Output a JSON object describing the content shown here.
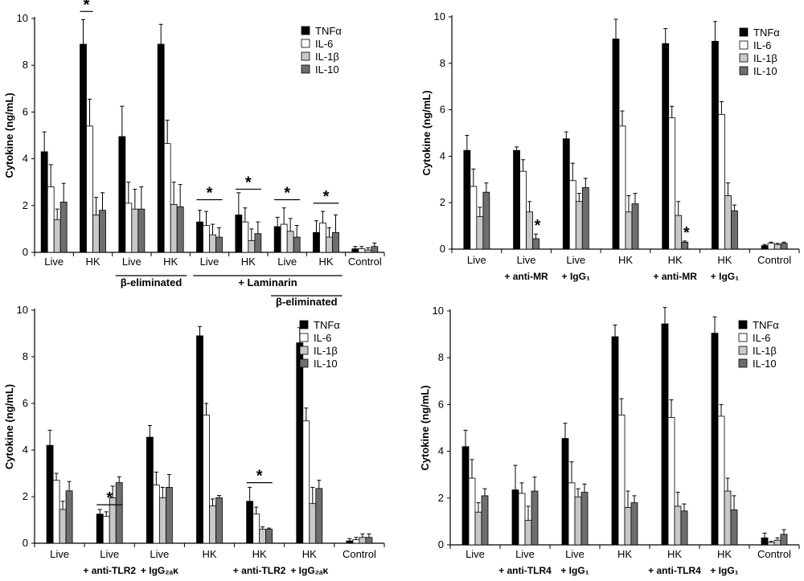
{
  "chart_data": [
    {
      "type": "bar",
      "panel": "A",
      "ylabel": "Cytokine (ng/mL)",
      "ylim": [
        0,
        10
      ],
      "yticks": [
        0,
        2,
        4,
        6,
        8,
        10
      ],
      "categories": [
        "Live",
        "HK",
        "Live",
        "HK",
        "Live",
        "HK",
        "Live",
        "HK",
        "Control"
      ],
      "sublabels": [],
      "group_labels": [
        {
          "text": "β-eliminated",
          "from": 2,
          "to": 3,
          "row": 1
        },
        {
          "text": "+ Laminarin",
          "from": 4,
          "to": 7,
          "row": 1
        },
        {
          "text": "β-eliminated",
          "from": 6,
          "to": 7,
          "row": 2
        }
      ],
      "series": [
        {
          "name": "TNFα",
          "color": "#000000",
          "values": [
            4.3,
            8.9,
            4.95,
            8.9,
            1.3,
            1.6,
            1.1,
            0.85,
            0.15
          ],
          "errors": [
            0.85,
            1.05,
            1.3,
            0.85,
            0.5,
            0.95,
            0.4,
            0.5,
            0.1
          ]
        },
        {
          "name": "IL-6",
          "color": "#ffffff",
          "values": [
            2.8,
            5.4,
            2.1,
            4.65,
            1.15,
            1.3,
            1.2,
            1.25,
            0.15
          ],
          "errors": [
            0.95,
            1.15,
            0.9,
            1.0,
            0.6,
            0.6,
            0.7,
            0.5,
            0.1
          ]
        },
        {
          "name": "IL-1β",
          "color": "#c8c8c8",
          "values": [
            1.4,
            1.6,
            1.85,
            2.05,
            0.75,
            0.5,
            0.9,
            0.65,
            0.1
          ],
          "errors": [
            0.45,
            0.75,
            0.85,
            0.95,
            0.45,
            0.5,
            0.55,
            0.4,
            0.1
          ]
        },
        {
          "name": "IL-10",
          "color": "#6e6e6e",
          "values": [
            2.15,
            1.8,
            1.85,
            1.95,
            0.65,
            0.8,
            0.65,
            0.85,
            0.25
          ],
          "errors": [
            0.8,
            0.75,
            0.95,
            0.95,
            0.4,
            0.5,
            0.5,
            0.75,
            0.15
          ]
        }
      ],
      "annotations": [
        {
          "text": "*",
          "category": 1,
          "from_series": 0,
          "to_series": 1,
          "at": 10.3
        },
        {
          "text": "*",
          "category": 4,
          "from_series": 0,
          "to_series": 3,
          "at": 2.25
        },
        {
          "text": "*",
          "category": 5,
          "from_series": 0,
          "to_series": 3,
          "at": 2.7
        },
        {
          "text": "*",
          "category": 6,
          "from_series": 0,
          "to_series": 3,
          "at": 2.25
        },
        {
          "text": "*",
          "category": 7,
          "from_series": 0,
          "to_series": 3,
          "at": 2.1
        }
      ]
    },
    {
      "type": "bar",
      "panel": "B",
      "ylabel": "Cytokine (ng/mL)",
      "ylim": [
        0,
        10
      ],
      "yticks": [
        0,
        2,
        4,
        6,
        8,
        10
      ],
      "categories": [
        "Live",
        "Live",
        "Live",
        "HK",
        "HK",
        "HK",
        "Control"
      ],
      "sublabels": [
        "",
        "+ anti-MR",
        "+ IgG₁",
        "",
        "+ anti-MR",
        "+ IgG₁",
        ""
      ],
      "group_labels": [],
      "series": [
        {
          "name": "TNFα",
          "color": "#000000",
          "values": [
            4.25,
            4.25,
            4.75,
            9.05,
            8.85,
            8.95,
            0.15
          ],
          "errors": [
            0.65,
            0.15,
            0.3,
            0.85,
            0.65,
            0.85,
            0.05
          ]
        },
        {
          "name": "IL-6",
          "color": "#ffffff",
          "values": [
            2.7,
            3.35,
            2.95,
            5.3,
            5.65,
            5.8,
            0.25
          ],
          "errors": [
            0.75,
            0.5,
            0.75,
            0.65,
            0.5,
            0.55,
            0.05
          ]
        },
        {
          "name": "IL-1β",
          "color": "#c8c8c8",
          "values": [
            1.4,
            1.6,
            2.05,
            1.6,
            1.45,
            2.3,
            0.2
          ],
          "errors": [
            0.4,
            0.45,
            0.35,
            0.7,
            0.6,
            0.55,
            0.05
          ]
        },
        {
          "name": "IL-10",
          "color": "#6e6e6e",
          "values": [
            2.45,
            0.45,
            2.65,
            1.95,
            0.3,
            1.65,
            0.25
          ],
          "errors": [
            0.4,
            0.2,
            0.4,
            0.45,
            0.05,
            0.25,
            0.05
          ]
        }
      ],
      "annotations": [
        {
          "text": "*",
          "category": 1,
          "series": 3
        },
        {
          "text": "*",
          "category": 4,
          "series": 3
        }
      ]
    },
    {
      "type": "bar",
      "panel": "C",
      "ylabel": "Cytokine (ng/mL)",
      "ylim": [
        0,
        10
      ],
      "yticks": [
        0,
        2,
        4,
        6,
        8,
        10
      ],
      "categories": [
        "Live",
        "Live",
        "Live",
        "HK",
        "HK",
        "HK",
        "Control"
      ],
      "sublabels": [
        "",
        "+ anti-TLR2",
        "+ IgG₂ₐκ",
        "",
        "+ anti-TLR2",
        "+ IgG₂ₐκ",
        ""
      ],
      "group_labels": [],
      "series": [
        {
          "name": "TNFα",
          "color": "#000000",
          "values": [
            4.2,
            1.25,
            4.55,
            8.9,
            1.8,
            8.6,
            0.1
          ],
          "errors": [
            0.65,
            0.2,
            0.5,
            0.4,
            0.6,
            0.65,
            0.1
          ]
        },
        {
          "name": "IL-6",
          "color": "#ffffff",
          "values": [
            2.7,
            1.15,
            2.5,
            5.5,
            1.25,
            5.25,
            0.15
          ],
          "errors": [
            0.3,
            0.2,
            0.55,
            0.5,
            0.3,
            0.55,
            0.1
          ]
        },
        {
          "name": "IL-1β",
          "color": "#c8c8c8",
          "values": [
            1.45,
            1.95,
            1.95,
            1.6,
            0.6,
            1.7,
            0.25
          ],
          "errors": [
            0.35,
            0.5,
            0.45,
            0.3,
            0.1,
            0.7,
            0.15
          ]
        },
        {
          "name": "IL-10",
          "color": "#6e6e6e",
          "values": [
            2.25,
            2.6,
            2.4,
            1.95,
            0.6,
            2.35,
            0.25
          ],
          "errors": [
            0.4,
            0.25,
            0.55,
            0.1,
            0.05,
            0.35,
            0.15
          ]
        }
      ],
      "annotations": [
        {
          "text": "*",
          "category": 1,
          "from_series": 0,
          "to_series": 3,
          "at": 1.65
        },
        {
          "text": "*",
          "category": 4,
          "from_series": 0,
          "to_series": 3,
          "at": 2.6
        }
      ]
    },
    {
      "type": "bar",
      "panel": "D",
      "ylabel": "Cytokine (ng/mL)",
      "ylim": [
        0,
        10
      ],
      "yticks": [
        0,
        2,
        4,
        6,
        8,
        10
      ],
      "categories": [
        "Live",
        "Live",
        "Live",
        "HK",
        "HK",
        "HK",
        "Control"
      ],
      "sublabels": [
        "",
        "+ anti-TLR4",
        "+ IgG₁",
        "",
        "+ anti-TLR4",
        "+ IgG₁",
        ""
      ],
      "group_labels": [],
      "series": [
        {
          "name": "TNFα",
          "color": "#000000",
          "values": [
            4.2,
            2.35,
            4.55,
            8.9,
            9.45,
            9.05,
            0.3
          ],
          "errors": [
            0.7,
            1.05,
            0.65,
            0.5,
            0.7,
            0.7,
            0.2
          ]
        },
        {
          "name": "IL-6",
          "color": "#ffffff",
          "values": [
            2.85,
            2.2,
            2.65,
            5.55,
            5.45,
            5.5,
            0.1
          ],
          "errors": [
            0.8,
            0.45,
            0.9,
            0.7,
            0.75,
            0.5,
            0.05
          ]
        },
        {
          "name": "IL-1β",
          "color": "#c8c8c8",
          "values": [
            1.4,
            1.05,
            2.05,
            1.6,
            1.65,
            2.3,
            0.2
          ],
          "errors": [
            0.4,
            0.6,
            0.35,
            0.7,
            0.6,
            0.55,
            0.1
          ]
        },
        {
          "name": "IL-10",
          "color": "#6e6e6e",
          "values": [
            2.1,
            2.3,
            2.25,
            1.8,
            1.45,
            1.5,
            0.45
          ],
          "errors": [
            0.3,
            0.6,
            0.35,
            0.3,
            0.3,
            0.6,
            0.2
          ]
        }
      ],
      "annotations": []
    }
  ]
}
